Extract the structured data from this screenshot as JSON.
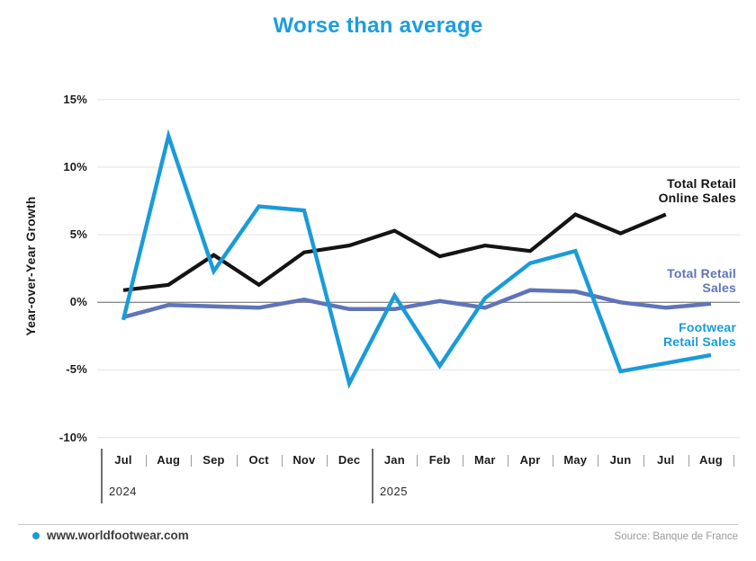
{
  "title": "Worse than average",
  "colors": {
    "title_blue": "#1C9DDE",
    "online_black": "#141414",
    "retail_purple": "#5F74B8",
    "footwear_blue": "#1A9BD8",
    "gridline": "#e9e9e9",
    "zeroline": "#8c8c8c"
  },
  "chart_data": {
    "type": "line",
    "title": "Worse than average",
    "ylabel": "Year-over-Year Growth",
    "ylim": [
      -10,
      15
    ],
    "ytick_values": [
      15,
      10,
      5,
      0,
      -5,
      -10
    ],
    "ytick_labels": [
      "15%",
      "10%",
      "5%",
      "0%",
      "-5%",
      "-10%"
    ],
    "grid": "horizontal-only",
    "x_months": [
      "Jul",
      "Aug",
      "Sep",
      "Oct",
      "Nov",
      "Dec",
      "Jan",
      "Feb",
      "Mar",
      "Apr",
      "May",
      "Jun",
      "Jul",
      "Aug"
    ],
    "x_years": [
      {
        "label": "2024",
        "start_index": 0
      },
      {
        "label": "2025",
        "start_index": 6
      }
    ],
    "series": [
      {
        "name": "Total Retail Online Sales",
        "color": "#141414",
        "values": [
          0.9,
          1.3,
          3.5,
          1.3,
          3.7,
          4.2,
          5.3,
          3.4,
          4.2,
          3.8,
          6.5,
          5.1,
          6.5,
          null
        ]
      },
      {
        "name": "Total Retail Sales",
        "color": "#5F74B8",
        "values": [
          -1.1,
          -0.2,
          -0.3,
          -0.4,
          0.2,
          -0.5,
          -0.5,
          0.1,
          -0.4,
          0.9,
          0.8,
          0.0,
          -0.4,
          -0.1
        ]
      },
      {
        "name": "Footwear Retail Sales",
        "color": "#1A9BD8",
        "values": [
          -1.3,
          12.3,
          2.3,
          7.1,
          6.8,
          -6.0,
          0.5,
          -4.7,
          0.3,
          2.9,
          3.8,
          -5.1,
          -4.5,
          -3.9
        ]
      }
    ],
    "legend_position": "right-of-lines",
    "legend": [
      {
        "lines": [
          "Total Retail",
          "Online Sales"
        ],
        "color": "#141414"
      },
      {
        "lines": [
          "Total Retail",
          "Sales"
        ],
        "color": "#5F74B8"
      },
      {
        "lines": [
          "Footwear",
          "Retail Sales"
        ],
        "color": "#1A9BD8"
      }
    ]
  },
  "footer": {
    "website": "www.worldfootwear.com",
    "source": "Source: Banque de France"
  }
}
